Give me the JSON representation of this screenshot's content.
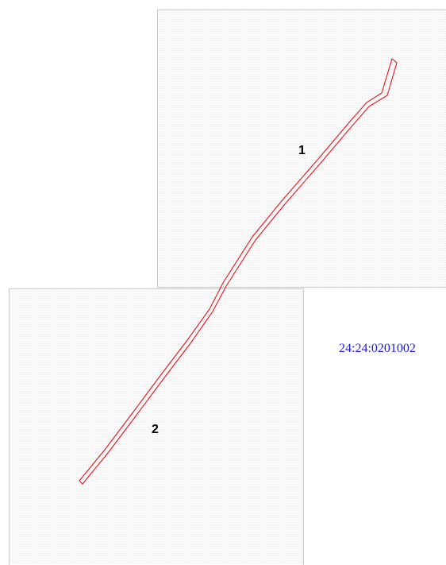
{
  "map": {
    "cadastral_number": "24:24:0201002",
    "parcels": [
      {
        "label": "1"
      },
      {
        "label": "2"
      }
    ],
    "colors": {
      "boundary": "#e8141b",
      "frame": "#c8c8c8",
      "fill": "#f6f6f6",
      "cadastral_text": "#1a1ae6"
    }
  }
}
